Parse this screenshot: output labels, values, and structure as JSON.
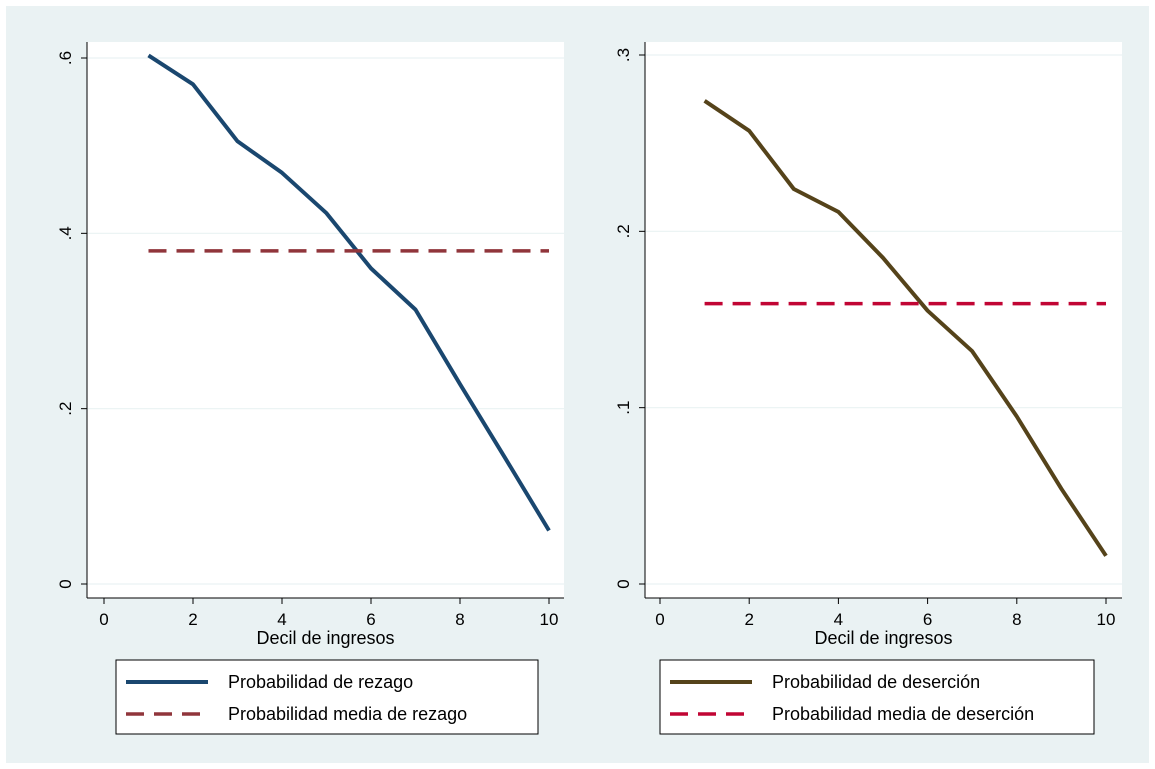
{
  "chart_data": [
    {
      "type": "line",
      "title": "",
      "xlabel": "Decil de ingresos",
      "ylabel": "",
      "xlim": [
        0,
        10
      ],
      "ylim": [
        0,
        0.6
      ],
      "xticks": [
        0,
        2,
        4,
        6,
        8,
        10
      ],
      "xtick_labels": [
        "0",
        "2",
        "4",
        "6",
        "8",
        "10"
      ],
      "yticks": [
        0,
        0.2,
        0.4,
        0.6
      ],
      "ytick_labels": [
        "0",
        ".2",
        ".4",
        ".6"
      ],
      "grid": true,
      "legend_position": "bottom",
      "series": [
        {
          "name": "Probabilidad de rezago",
          "style": "solid",
          "color": "#1a476f",
          "x": [
            1,
            2,
            3,
            4,
            5,
            6,
            7,
            8,
            9,
            10
          ],
          "values": [
            0.603,
            0.57,
            0.505,
            0.469,
            0.423,
            0.36,
            0.313,
            0.228,
            0.145,
            0.061
          ]
        },
        {
          "name": "Probabilidad media de rezago",
          "style": "dashed",
          "color": "#90353b",
          "x": [
            1,
            2,
            3,
            4,
            5,
            6,
            7,
            8,
            9,
            10
          ],
          "values": [
            0.38,
            0.38,
            0.38,
            0.38,
            0.38,
            0.38,
            0.38,
            0.38,
            0.38,
            0.38
          ]
        }
      ]
    },
    {
      "type": "line",
      "title": "",
      "xlabel": "Decil de ingresos",
      "ylabel": "",
      "xlim": [
        0,
        10
      ],
      "ylim": [
        0,
        0.3
      ],
      "xticks": [
        0,
        2,
        4,
        6,
        8,
        10
      ],
      "xtick_labels": [
        "0",
        "2",
        "4",
        "6",
        "8",
        "10"
      ],
      "yticks": [
        0,
        0.1,
        0.2,
        0.3
      ],
      "ytick_labels": [
        "0",
        ".1",
        ".2",
        ".3"
      ],
      "grid": true,
      "legend_position": "bottom",
      "series": [
        {
          "name": "Probabilidad de deserción",
          "style": "solid",
          "color": "#55431a",
          "x": [
            1,
            2,
            3,
            4,
            5,
            6,
            7,
            8,
            9,
            10
          ],
          "values": [
            0.274,
            0.257,
            0.224,
            0.211,
            0.185,
            0.155,
            0.132,
            0.095,
            0.054,
            0.016
          ]
        },
        {
          "name": "Probabilidad media de deserción",
          "style": "dashed",
          "color": "#c10534",
          "x": [
            1,
            2,
            3,
            4,
            5,
            6,
            7,
            8,
            9,
            10
          ],
          "values": [
            0.159,
            0.159,
            0.159,
            0.159,
            0.159,
            0.159,
            0.159,
            0.159,
            0.159,
            0.159
          ]
        }
      ]
    }
  ]
}
